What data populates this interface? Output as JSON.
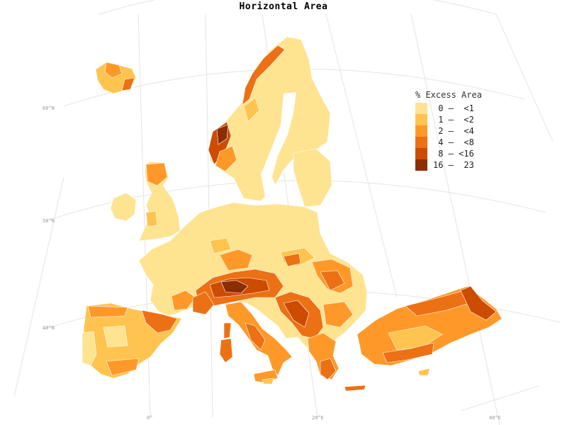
{
  "title": "Horizontal Area",
  "legend": {
    "title": "% Excess Area",
    "classes": [
      {
        "label": " 0 –  <1",
        "color": "#FEE391"
      },
      {
        "label": " 1 –  <2",
        "color": "#FEC44F"
      },
      {
        "label": " 2 –  <4",
        "color": "#FE9929"
      },
      {
        "label": " 4 –  <8",
        "color": "#EC7014"
      },
      {
        "label": " 8 – <16",
        "color": "#CC4C02"
      },
      {
        "label": "16 –  23",
        "color": "#8C2D04"
      }
    ]
  },
  "graticule": {
    "lat_labels": [
      "60°N",
      "50°N",
      "40°N"
    ],
    "lon_labels": [
      "0°",
      "20°E",
      "40°E"
    ]
  },
  "map": {
    "land_color": "#FEE391",
    "background": "#FFFFFF"
  }
}
